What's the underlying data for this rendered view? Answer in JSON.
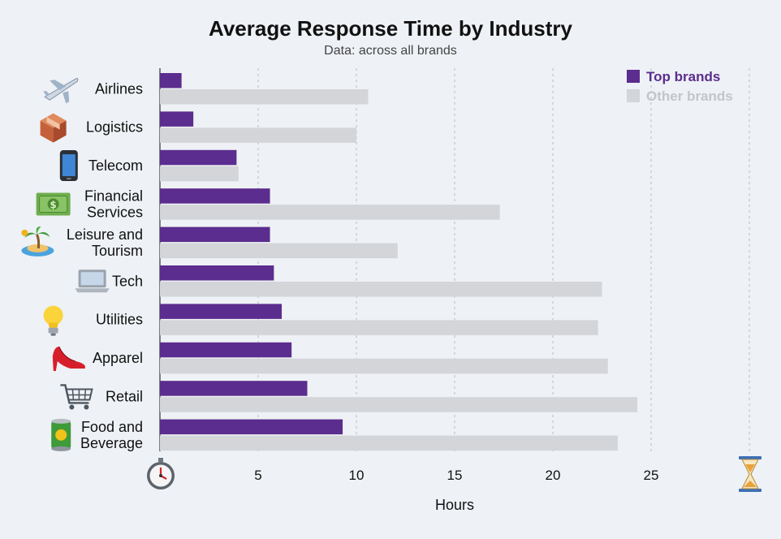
{
  "chart_data": {
    "type": "bar",
    "orientation": "horizontal",
    "title": "Average Response Time by Industry",
    "subtitle": "Data: across all brands",
    "xlabel": "Hours",
    "ylabel": "",
    "xlim": [
      0,
      30
    ],
    "xticks": [
      5,
      10,
      15,
      20,
      25
    ],
    "grid": "vertical dashed",
    "legend_position": "top-right",
    "categories": [
      "Airlines",
      "Logistics",
      "Telecom",
      "Financial Services",
      "Leisure and Tourism",
      "Tech",
      "Utilities",
      "Apparel",
      "Retail",
      "Food and Beverage"
    ],
    "category_lines": [
      [
        "Airlines"
      ],
      [
        "Logistics"
      ],
      [
        "Telecom"
      ],
      [
        "Financial",
        "Services"
      ],
      [
        "Leisure and",
        "Tourism"
      ],
      [
        "Tech"
      ],
      [
        "Utilities"
      ],
      [
        "Apparel"
      ],
      [
        "Retail"
      ],
      [
        "Food and",
        "Beverage"
      ]
    ],
    "category_icons": [
      "airplane-icon",
      "package-icon",
      "mobile-phone-icon",
      "money-icon",
      "island-icon",
      "laptop-icon",
      "light-bulb-icon",
      "high-heel-icon",
      "shopping-cart-icon",
      "food-can-icon"
    ],
    "series": [
      {
        "name": "Top brands",
        "color": "#5b2d8e",
        "values": [
          1.1,
          1.7,
          3.9,
          5.6,
          5.6,
          5.8,
          6.2,
          6.7,
          7.5,
          9.3
        ]
      },
      {
        "name": "Other brands",
        "color": "#d3d5d8",
        "values": [
          10.6,
          10.0,
          4.0,
          17.3,
          12.1,
          22.5,
          22.3,
          22.8,
          24.3,
          23.3
        ]
      }
    ],
    "axis_icons": {
      "start": "stopwatch-icon",
      "end": "hourglass-icon"
    }
  }
}
